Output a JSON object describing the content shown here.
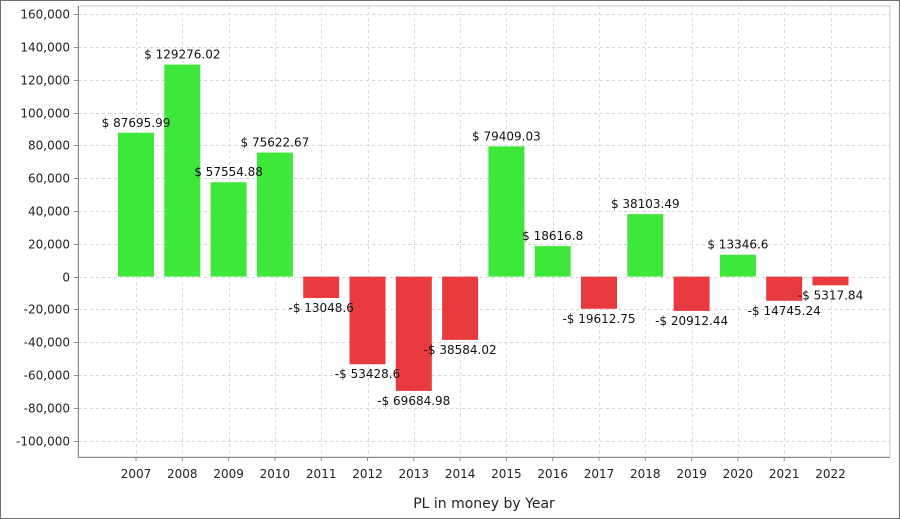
{
  "chart_data": {
    "type": "bar",
    "title": "",
    "xlabel": "PL in money by Year",
    "ylabel": "",
    "ylim": [
      -110000,
      165000
    ],
    "yticks": [
      160000,
      140000,
      120000,
      100000,
      80000,
      60000,
      40000,
      20000,
      0,
      -20000,
      -40000,
      -60000,
      -80000,
      -100000
    ],
    "ytick_labels": [
      "160,000",
      "140,000",
      "120,000",
      "100,000",
      "80,000",
      "60,000",
      "40,000",
      "20,000",
      "0",
      "-20,000",
      "-40,000",
      "-60,000",
      "-80,000",
      "-100,000"
    ],
    "grid": true,
    "legend": "none",
    "positive_color": "#3ee83a",
    "negative_color": "#e83a3f",
    "categories": [
      "2007",
      "2008",
      "2009",
      "2010",
      "2011",
      "2012",
      "2013",
      "2014",
      "2015",
      "2016",
      "2017",
      "2018",
      "2019",
      "2020",
      "2021",
      "2022"
    ],
    "values": [
      87695.99,
      129276.02,
      57554.88,
      75622.67,
      -13048.6,
      -53428.6,
      -69684.98,
      -38584.02,
      79409.03,
      18616.8,
      -19612.75,
      38103.49,
      -20912.44,
      13346.6,
      -14745.24,
      -5317.84
    ],
    "data_labels": [
      "$ 87695.99",
      "$ 129276.02",
      "$ 57554.88",
      "$ 75622.67",
      "-$ 13048.6",
      "-$ 53428.6",
      "-$ 69684.98",
      "-$ 38584.02",
      "$ 79409.03",
      "$ 18616.8",
      "-$ 19612.75",
      "$ 38103.49",
      "-$ 20912.44",
      "$ 13346.6",
      "-$ 14745.24",
      "-$ 5317.84"
    ]
  }
}
